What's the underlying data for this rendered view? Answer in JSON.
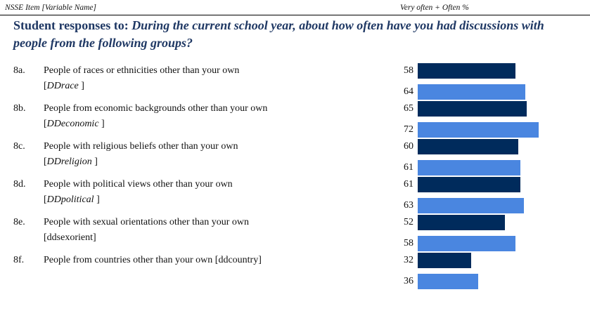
{
  "header": {
    "left": "NSSE Item [Variable Name]",
    "right": "Very often + Often %"
  },
  "title": {
    "lead": "Student responses to: ",
    "question": "During the current school year, about how often have you had discussions with people from the following groups?"
  },
  "colors": {
    "dark": "#002b5c",
    "light": "#4a86e0"
  },
  "chart_data": {
    "type": "bar",
    "orientation": "horizontal",
    "categories": [
      {
        "code": "8a.",
        "text": "People of races or ethnicities other than your own",
        "var_open": "[",
        "var": "DDrace",
        "var_close": " ]",
        "var_italic": true,
        "values": [
          58,
          64
        ]
      },
      {
        "code": "8b.",
        "text": "People from economic backgrounds other than your own",
        "var_open": "[",
        "var": "DDeconomic",
        "var_close": " ]",
        "var_italic": true,
        "values": [
          65,
          72
        ]
      },
      {
        "code": "8c.",
        "text": "People with religious beliefs other than your own",
        "var_open": "[",
        "var": "DDreligion",
        "var_close": " ]",
        "var_italic": true,
        "values": [
          60,
          61
        ]
      },
      {
        "code": "8d.",
        "text": "People with political views other than your own",
        "var_open": "[",
        "var": "DDpolitical",
        "var_close": " ]",
        "var_italic": true,
        "values": [
          61,
          63
        ]
      },
      {
        "code": "8e.",
        "text": "People with sexual orientations other than your own",
        "var_open": "",
        "var": "[ddsexorient]",
        "var_close": "",
        "var_italic": false,
        "values": [
          52,
          58
        ]
      },
      {
        "code": "8f.",
        "text": "People from countries other than your own [ddcountry]",
        "var_open": "",
        "var": "",
        "var_close": "",
        "var_italic": false,
        "values": [
          32,
          36
        ]
      }
    ],
    "series": [
      {
        "color": "#002b5c"
      },
      {
        "color": "#4a86e0"
      }
    ],
    "xlim": [
      0,
      72
    ],
    "grid": false,
    "legend": "none"
  }
}
